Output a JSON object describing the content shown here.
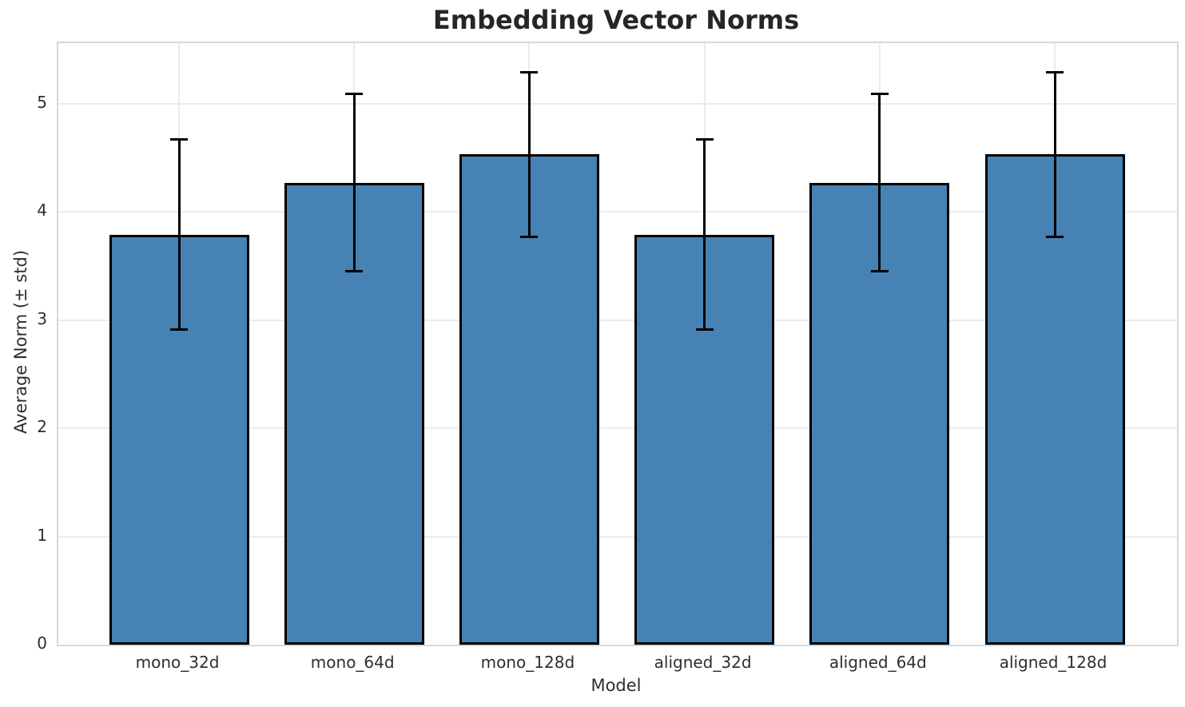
{
  "chart_data": {
    "type": "bar",
    "title": "Embedding Vector Norms",
    "xlabel": "Model",
    "ylabel": "Average Norm (± std)",
    "categories": [
      "mono_32d",
      "mono_64d",
      "mono_128d",
      "aligned_32d",
      "aligned_64d",
      "aligned_128d"
    ],
    "values": [
      3.79,
      4.27,
      4.53,
      3.79,
      4.27,
      4.53
    ],
    "errors": [
      0.88,
      0.82,
      0.76,
      0.88,
      0.82,
      0.76
    ],
    "error_ranges": [
      [
        2.91,
        4.67
      ],
      [
        3.45,
        5.09
      ],
      [
        3.77,
        5.29
      ],
      [
        2.91,
        4.67
      ],
      [
        3.45,
        5.09
      ],
      [
        3.77,
        5.29
      ]
    ],
    "ylim": [
      0,
      5.56
    ],
    "y_ticks": [
      0,
      1,
      2,
      3,
      4,
      5
    ],
    "grid": true,
    "legend": "none",
    "bar_color": "#4682B4",
    "bar_edge_color": "#000000",
    "error_color": "#000000",
    "grid_color": "#ebebeb",
    "spine_color": "#d8d8d8",
    "text_color": "#2e2e2e",
    "title_color": "#262626"
  }
}
